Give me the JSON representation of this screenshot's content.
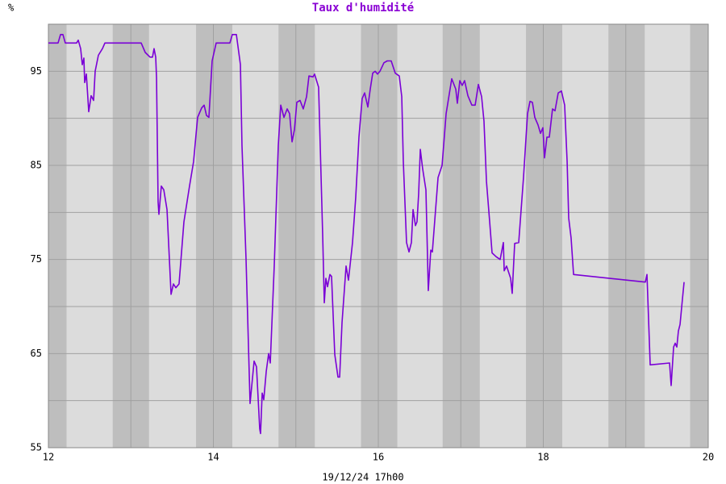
{
  "chart_data": {
    "type": "line",
    "title": "Taux d'humidité",
    "y_unit": "%",
    "footer": "19/12/24 17h00",
    "xlim": [
      12,
      20
    ],
    "xticks": [
      12,
      14,
      16,
      18,
      20
    ],
    "xgrid_minor": [
      13,
      15,
      17,
      19
    ],
    "ylim": [
      55,
      100
    ],
    "yticks": [
      55,
      65,
      75,
      85,
      95
    ],
    "ygrid_minor": [
      60,
      70,
      80,
      90
    ],
    "grid": true,
    "night_bands": [
      [
        12,
        12.22
      ],
      [
        12.78,
        13.22
      ],
      [
        13.79,
        14.23
      ],
      [
        14.79,
        15.23
      ],
      [
        15.79,
        16.23
      ],
      [
        16.78,
        17.23
      ],
      [
        17.79,
        18.23
      ],
      [
        18.79,
        19.23
      ],
      [
        19.78,
        20
      ]
    ],
    "x": [
      12.0,
      12.117,
      12.147,
      12.176,
      12.205,
      12.342,
      12.362,
      12.391,
      12.411,
      12.43,
      12.44,
      12.46,
      12.489,
      12.518,
      12.548,
      12.567,
      12.606,
      12.655,
      12.685,
      13.125,
      13.174,
      13.232,
      13.262,
      13.281,
      13.301,
      13.311,
      13.33,
      13.34,
      13.369,
      13.399,
      13.438,
      13.487,
      13.516,
      13.545,
      13.584,
      13.643,
      13.711,
      13.76,
      13.809,
      13.858,
      13.888,
      13.917,
      13.946,
      13.985,
      14.034,
      14.2,
      14.23,
      14.279,
      14.328,
      14.347,
      14.396,
      14.445,
      14.494,
      14.523,
      14.562,
      14.572,
      14.592,
      14.611,
      14.641,
      14.67,
      14.69,
      14.738,
      14.787,
      14.817,
      14.856,
      14.895,
      14.924,
      14.954,
      14.983,
      15.012,
      15.051,
      15.09,
      15.13,
      15.159,
      15.208,
      15.227,
      15.276,
      15.325,
      15.345,
      15.364,
      15.384,
      15.413,
      15.433,
      15.472,
      15.511,
      15.531,
      15.56,
      15.609,
      15.638,
      15.687,
      15.726,
      15.765,
      15.804,
      15.834,
      15.873,
      15.902,
      15.932,
      15.961,
      15.99,
      16.02,
      16.068,
      16.108,
      16.156,
      16.205,
      16.254,
      16.284,
      16.303,
      16.342,
      16.372,
      16.401,
      16.421,
      16.45,
      16.469,
      16.489,
      16.509,
      16.538,
      16.577,
      16.606,
      16.636,
      16.655,
      16.724,
      16.773,
      16.822,
      16.89,
      16.939,
      16.958,
      16.988,
      17.017,
      17.046,
      17.086,
      17.134,
      17.174,
      17.213,
      17.252,
      17.281,
      17.311,
      17.35,
      17.379,
      17.428,
      17.477,
      17.516,
      17.526,
      17.555,
      17.604,
      17.623,
      17.653,
      17.702,
      17.76,
      17.809,
      17.839,
      17.868,
      17.897,
      17.936,
      17.966,
      17.995,
      18.015,
      18.044,
      18.073,
      18.112,
      18.142,
      18.181,
      18.22,
      18.259,
      18.289,
      18.308,
      18.337,
      18.367,
      19.237,
      19.257,
      19.296,
      19.531,
      19.55,
      19.58,
      19.599,
      19.619,
      19.638,
      19.658,
      19.687,
      19.707
    ],
    "series": [
      {
        "color": "#7a00d6",
        "values": [
          98.0,
          98.0,
          98.9,
          98.9,
          98.0,
          98.0,
          98.3,
          97.4,
          95.7,
          96.4,
          93.8,
          94.7,
          90.7,
          92.4,
          91.9,
          95.0,
          96.7,
          97.4,
          98.0,
          98.0,
          97.0,
          96.5,
          96.5,
          97.4,
          96.5,
          94.3,
          81.1,
          79.8,
          82.8,
          82.4,
          80.3,
          71.3,
          72.4,
          72.0,
          72.4,
          79.0,
          82.8,
          85.4,
          90.1,
          91.1,
          91.4,
          90.3,
          90.1,
          96.1,
          98.0,
          98.0,
          98.9,
          98.9,
          95.7,
          87.1,
          75.1,
          59.7,
          64.2,
          63.6,
          57.0,
          56.5,
          60.8,
          60.1,
          63.1,
          65.0,
          64.0,
          74.3,
          87.1,
          91.4,
          90.1,
          91.0,
          90.5,
          87.5,
          88.8,
          91.7,
          91.9,
          91.0,
          92.3,
          94.5,
          94.4,
          94.7,
          93.3,
          77.7,
          70.4,
          73.0,
          72.1,
          73.4,
          73.2,
          64.9,
          62.5,
          62.5,
          68.3,
          74.3,
          72.8,
          76.8,
          81.6,
          88.0,
          92.1,
          92.7,
          91.2,
          93.1,
          94.8,
          95.0,
          94.7,
          95.0,
          95.9,
          96.1,
          96.1,
          94.8,
          94.5,
          92.3,
          85.4,
          76.8,
          75.8,
          76.8,
          80.3,
          78.6,
          79.0,
          82.0,
          86.7,
          84.6,
          82.4,
          71.7,
          76.0,
          75.8,
          83.7,
          85.0,
          90.5,
          94.2,
          93.1,
          91.6,
          94.0,
          93.5,
          94.0,
          92.4,
          91.4,
          91.4,
          93.6,
          92.3,
          89.7,
          83.3,
          79.0,
          75.7,
          75.3,
          75.0,
          76.8,
          73.8,
          74.3,
          73.0,
          71.4,
          76.7,
          76.8,
          83.7,
          90.5,
          91.8,
          91.7,
          90.1,
          89.3,
          88.4,
          89.0,
          85.8,
          88.0,
          88.0,
          91.0,
          90.8,
          92.7,
          92.9,
          91.4,
          85.4,
          79.4,
          77.3,
          73.4,
          72.6,
          73.4,
          63.8,
          64.0,
          61.6,
          65.7,
          66.1,
          65.7,
          67.4,
          68.1,
          70.8,
          72.6
        ]
      }
    ]
  }
}
